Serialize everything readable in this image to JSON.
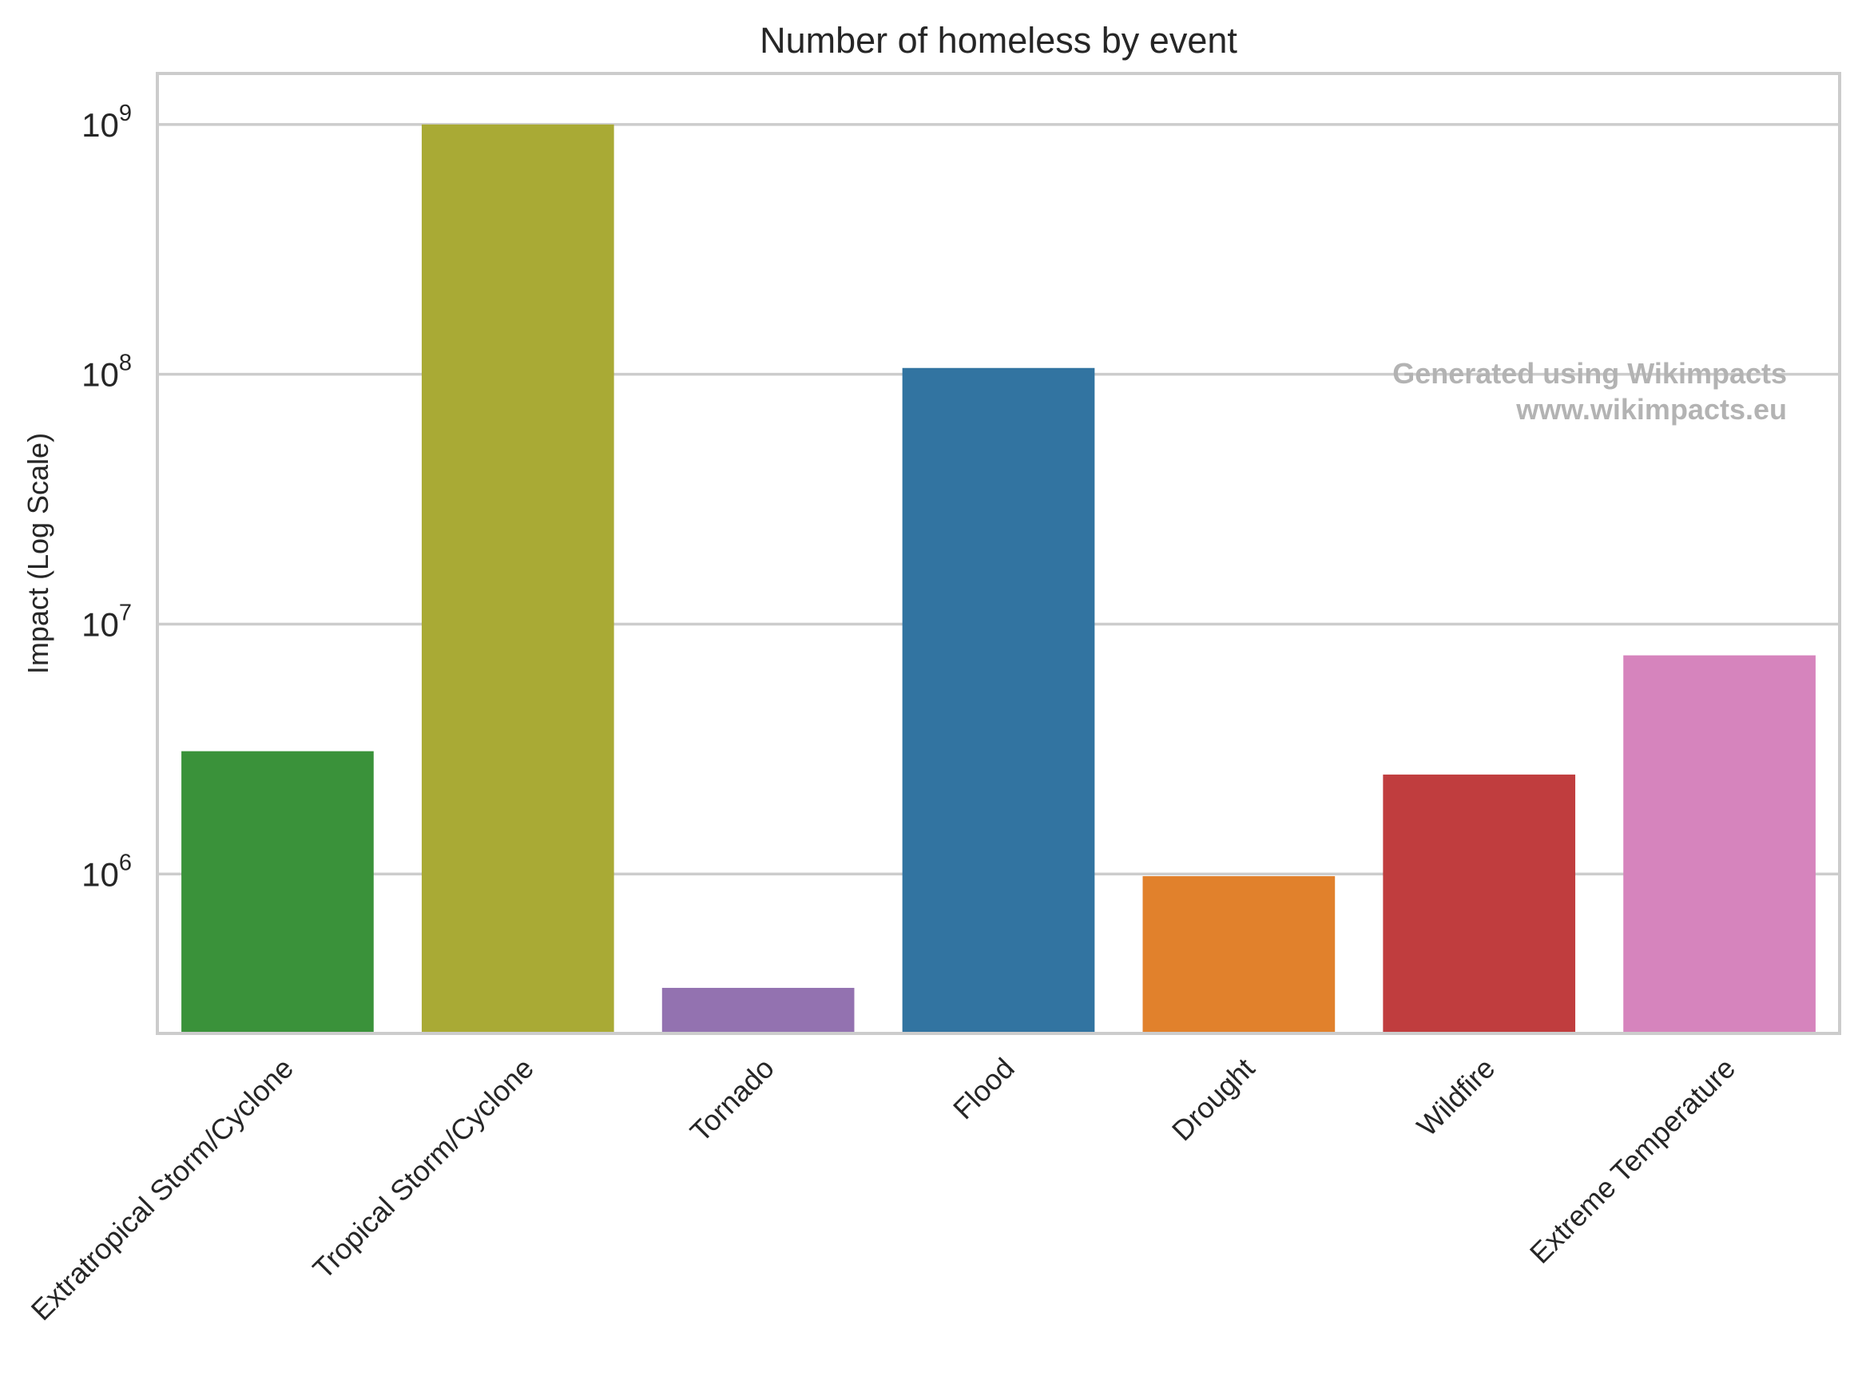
{
  "chart_data": {
    "type": "bar",
    "title": "Number of homeless by event",
    "xlabel": "",
    "ylabel": "Impact (Log Scale)",
    "yscale": "log",
    "ylim": [
      230000,
      1600000000
    ],
    "yticks": [
      {
        "base": "10",
        "exp": "6",
        "value": 1000000
      },
      {
        "base": "10",
        "exp": "7",
        "value": 10000000
      },
      {
        "base": "10",
        "exp": "8",
        "value": 100000000
      },
      {
        "base": "10",
        "exp": "9",
        "value": 1000000000
      }
    ],
    "grid": true,
    "categories": [
      "Extratropical Storm/Cyclone",
      "Tropical Storm/Cyclone",
      "Tornado",
      "Flood",
      "Drought",
      "Wildfire",
      "Extreme Temperature"
    ],
    "values": [
      3100000,
      1000000000,
      350000,
      106000000,
      980000,
      2500000,
      7500000
    ],
    "colors": [
      "#3a923a",
      "#a9aa35",
      "#9372b0",
      "#3274a1",
      "#e1812c",
      "#c03d3e",
      "#d684bd"
    ]
  },
  "watermark": {
    "line1": "Generated using Wikimpacts",
    "line2": "www.wikimpacts.eu"
  }
}
